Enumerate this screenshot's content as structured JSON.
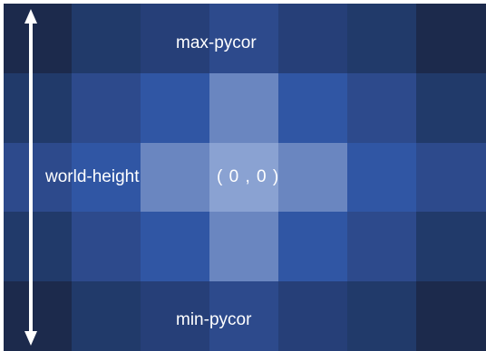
{
  "labels": {
    "max_pycor": "max-pycor",
    "min_pycor": "min-pycor",
    "world_height": "world-height",
    "origin": "( 0 , 0 )"
  },
  "patch_colors": [
    [
      "#1c2a4c",
      "#213a6a",
      "#263f78",
      "#2d4a8c",
      "#263f78",
      "#213a6a",
      "#1c2a4c"
    ],
    [
      "#213a6a",
      "#2d4a8c",
      "#3056a4",
      "#6a86c0",
      "#3056a4",
      "#2d4a8c",
      "#213a6a"
    ],
    [
      "#2d4a8c",
      "#3056a4",
      "#6a86c0",
      "#8aa2d2",
      "#6a86c0",
      "#3056a4",
      "#2d4a8c"
    ],
    [
      "#213a6a",
      "#2d4a8c",
      "#3056a4",
      "#6a86c0",
      "#3056a4",
      "#2d4a8c",
      "#213a6a"
    ],
    [
      "#1c2a4c",
      "#213a6a",
      "#263f78",
      "#2d4a8c",
      "#263f78",
      "#213a6a",
      "#1c2a4c"
    ]
  ],
  "colors": {
    "label_text": "#ffffff",
    "arrow": "#ffffff"
  }
}
